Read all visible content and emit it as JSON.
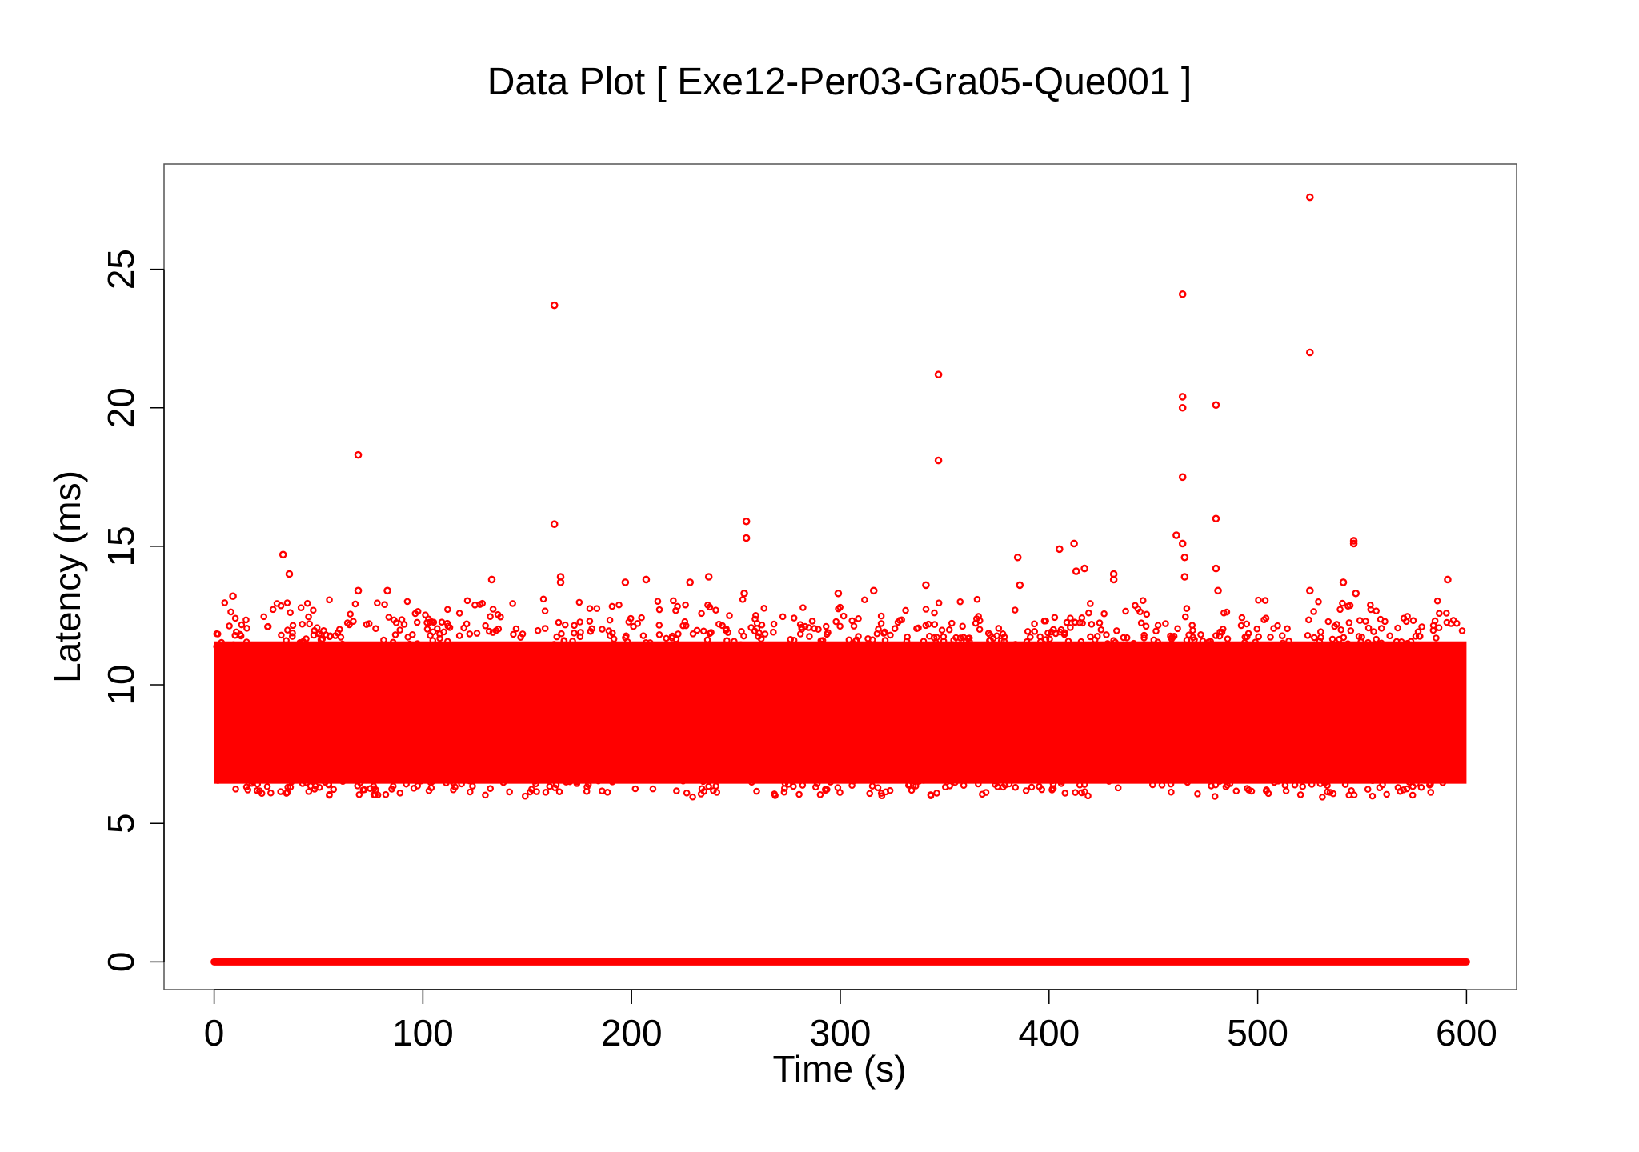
{
  "chart_data": {
    "type": "scatter",
    "title": "Data Plot [ Exe12-Per03-Gra05-Que001 ]",
    "xlabel": "Time (s)",
    "ylabel": "Latency (ms)",
    "xlim": [
      -24,
      624
    ],
    "ylim": [
      -1.0,
      28.8
    ],
    "xticks": [
      0,
      100,
      200,
      300,
      400,
      500,
      600
    ],
    "yticks": [
      0,
      5,
      10,
      15,
      20,
      25
    ],
    "grid": false,
    "legend": "none",
    "color": "#ff0000",
    "marker": "open-circle",
    "series": [
      {
        "baseline": {
          "x_range": [
            0,
            600
          ],
          "y": 0
        },
        "dense_band": {
          "x_range": [
            0,
            600
          ],
          "y_range": [
            6.2,
            11.8
          ],
          "center": 9.0
        },
        "outliers": [
          {
            "x": 33,
            "y": 14.7
          },
          {
            "x": 36,
            "y": 14.0
          },
          {
            "x": 69,
            "y": 18.3
          },
          {
            "x": 69,
            "y": 13.4
          },
          {
            "x": 83,
            "y": 13.4
          },
          {
            "x": 9,
            "y": 13.2
          },
          {
            "x": 133,
            "y": 13.8
          },
          {
            "x": 163,
            "y": 23.7
          },
          {
            "x": 163,
            "y": 15.8
          },
          {
            "x": 166,
            "y": 13.9
          },
          {
            "x": 166,
            "y": 13.7
          },
          {
            "x": 197,
            "y": 13.7
          },
          {
            "x": 207,
            "y": 13.8
          },
          {
            "x": 228,
            "y": 13.7
          },
          {
            "x": 237,
            "y": 13.9
          },
          {
            "x": 255,
            "y": 15.9
          },
          {
            "x": 255,
            "y": 15.3
          },
          {
            "x": 254,
            "y": 13.3
          },
          {
            "x": 299,
            "y": 13.3
          },
          {
            "x": 316,
            "y": 13.4
          },
          {
            "x": 341,
            "y": 13.6
          },
          {
            "x": 347,
            "y": 21.2
          },
          {
            "x": 347,
            "y": 18.1
          },
          {
            "x": 385,
            "y": 14.6
          },
          {
            "x": 386,
            "y": 13.6
          },
          {
            "x": 405,
            "y": 14.9
          },
          {
            "x": 412,
            "y": 15.1
          },
          {
            "x": 413,
            "y": 14.1
          },
          {
            "x": 417,
            "y": 14.2
          },
          {
            "x": 431,
            "y": 14.0
          },
          {
            "x": 431,
            "y": 13.8
          },
          {
            "x": 461,
            "y": 15.4
          },
          {
            "x": 464,
            "y": 24.1
          },
          {
            "x": 464,
            "y": 20.4
          },
          {
            "x": 464,
            "y": 20.0
          },
          {
            "x": 464,
            "y": 17.5
          },
          {
            "x": 464,
            "y": 15.1
          },
          {
            "x": 465,
            "y": 14.6
          },
          {
            "x": 465,
            "y": 13.9
          },
          {
            "x": 480,
            "y": 20.1
          },
          {
            "x": 480,
            "y": 16.0
          },
          {
            "x": 480,
            "y": 14.2
          },
          {
            "x": 481,
            "y": 13.4
          },
          {
            "x": 525,
            "y": 27.6
          },
          {
            "x": 525,
            "y": 22.0
          },
          {
            "x": 525,
            "y": 13.4
          },
          {
            "x": 541,
            "y": 13.7
          },
          {
            "x": 546,
            "y": 15.2
          },
          {
            "x": 546,
            "y": 15.1
          },
          {
            "x": 547,
            "y": 13.3
          },
          {
            "x": 591,
            "y": 13.8
          }
        ]
      }
    ]
  }
}
